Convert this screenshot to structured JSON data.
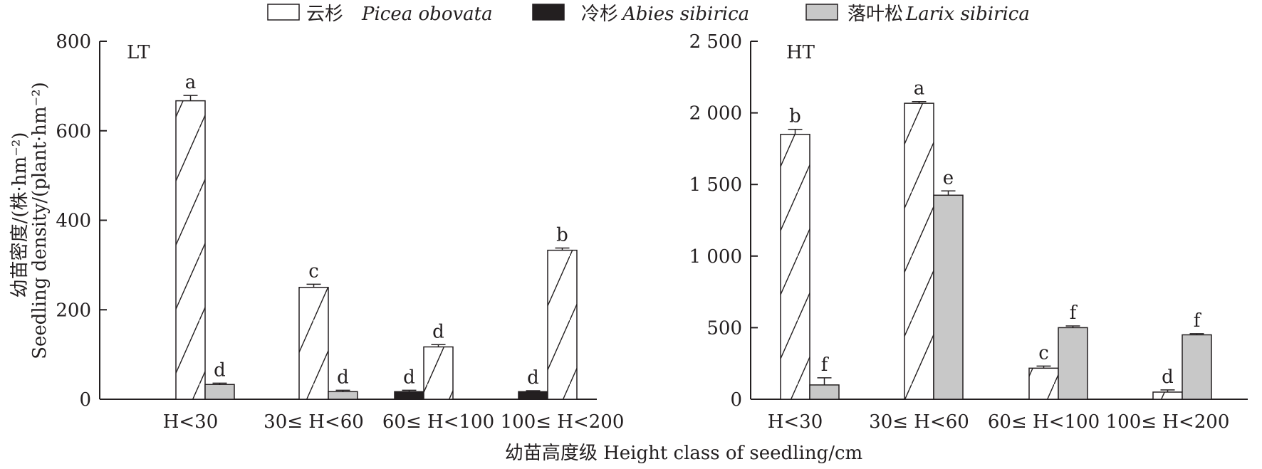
{
  "legend": [
    {
      "zh": "云杉",
      "latin": "Picea obovata",
      "style": "hatched"
    },
    {
      "zh": "冷杉",
      "latin": "Abies sibirica",
      "style": "black"
    },
    {
      "zh": "落叶松",
      "latin": "Larix sibirica",
      "style": "gray"
    }
  ],
  "y_axis_title_zh": "幼苗密度/(株·hm⁻²)",
  "y_axis_title_en": "Seedling density/(plant·hm⁻²)",
  "x_axis_title": "幼苗高度级 Height class of seedling/cm",
  "colors": {
    "black": "#231f20",
    "gray": "#c8c8c8",
    "white": "#ffffff"
  },
  "chart_data": [
    {
      "type": "bar",
      "panel": "LT",
      "categories": [
        "H<30",
        "30≤ H<60",
        "60≤ H<100",
        "100≤ H<200"
      ],
      "ylim": [
        0,
        800
      ],
      "yticks": [
        0,
        200,
        400,
        600,
        800
      ],
      "ytick_labels": [
        "0",
        "200",
        "400",
        "600",
        "800"
      ],
      "bars": [
        {
          "cat": 0,
          "slot": 1,
          "series": "Picea obovata",
          "value": 667,
          "err": 12,
          "label": "a"
        },
        {
          "cat": 0,
          "slot": 2,
          "series": "Larix sibirica",
          "value": 33,
          "err": 3,
          "label": "d"
        },
        {
          "cat": 1,
          "slot": 1,
          "series": "Picea obovata",
          "value": 250,
          "err": 7,
          "label": "c"
        },
        {
          "cat": 1,
          "slot": 2,
          "series": "Larix sibirica",
          "value": 17,
          "err": 3,
          "label": "d"
        },
        {
          "cat": 2,
          "slot": 0,
          "series": "Abies sibirica",
          "value": 17,
          "err": 3,
          "label": "d"
        },
        {
          "cat": 2,
          "slot": 1,
          "series": "Picea obovata",
          "value": 117,
          "err": 5,
          "label": "d"
        },
        {
          "cat": 3,
          "slot": 0,
          "series": "Abies sibirica",
          "value": 17,
          "err": 2,
          "label": "d"
        },
        {
          "cat": 3,
          "slot": 1,
          "series": "Picea obovata",
          "value": 333,
          "err": 5,
          "label": "b"
        }
      ]
    },
    {
      "type": "bar",
      "panel": "HT",
      "categories": [
        "H<30",
        "30≤ H<60",
        "60≤ H<100",
        "100≤ H<200"
      ],
      "ylim": [
        0,
        2500
      ],
      "yticks": [
        0,
        500,
        1000,
        1500,
        2000,
        2500
      ],
      "ytick_labels": [
        "0",
        "500",
        "1 000",
        "1 500",
        "2 000",
        "2 500"
      ],
      "bars": [
        {
          "cat": 0,
          "slot": 1,
          "series": "Picea obovata",
          "value": 1850,
          "err": 35,
          "label": "b"
        },
        {
          "cat": 0,
          "slot": 2,
          "series": "Larix sibirica",
          "value": 100,
          "err": 50,
          "label": "f"
        },
        {
          "cat": 1,
          "slot": 1,
          "series": "Picea obovata",
          "value": 2067,
          "err": 12,
          "label": "a"
        },
        {
          "cat": 1,
          "slot": 2,
          "series": "Larix sibirica",
          "value": 1425,
          "err": 30,
          "label": "e"
        },
        {
          "cat": 2,
          "slot": 1,
          "series": "Picea obovata",
          "value": 217,
          "err": 15,
          "label": "c"
        },
        {
          "cat": 2,
          "slot": 2,
          "series": "Larix sibirica",
          "value": 500,
          "err": 12,
          "label": "f"
        },
        {
          "cat": 3,
          "slot": 1,
          "series": "Picea obovata",
          "value": 50,
          "err": 15,
          "label": "d"
        },
        {
          "cat": 3,
          "slot": 2,
          "series": "Larix sibirica",
          "value": 450,
          "err": 8,
          "label": "f"
        }
      ]
    }
  ]
}
